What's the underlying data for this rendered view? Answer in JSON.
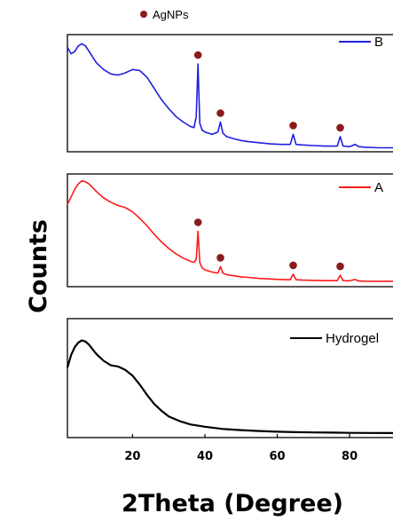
{
  "chart_data": {
    "type": "line",
    "layout": "stacked panels sharing x axis",
    "xlabel": "2Theta (Degree)",
    "ylabel": "Counts",
    "xlim": [
      2,
      92
    ],
    "x_ticks": [
      20,
      40,
      60,
      80
    ],
    "y_ticks_shown": false,
    "grid": false,
    "annotation": {
      "label": "AgNPs",
      "marker": "dot",
      "color": "#8B1A1A",
      "x_positions": [
        38.1,
        44.3,
        64.4,
        77.4
      ],
      "applies_to": [
        "B",
        "A"
      ]
    },
    "panels": [
      {
        "name": "B",
        "legend": "B",
        "color": "#1f1fe0",
        "ylim": [
          0,
          100
        ],
        "x": [
          2,
          3,
          4,
          5,
          6,
          7,
          8,
          10,
          12,
          14,
          16,
          18,
          20,
          22,
          24,
          26,
          28,
          30,
          32,
          34,
          36,
          37,
          37.6,
          38.1,
          38.6,
          39.2,
          40,
          42,
          43.6,
          44.3,
          45,
          46,
          48,
          50,
          52,
          55,
          58,
          61,
          63.6,
          64.4,
          65.2,
          67,
          70,
          73,
          76.6,
          77.4,
          78.2,
          80,
          81.5,
          82.5,
          84,
          88,
          92
        ],
        "values": [
          92,
          86,
          88,
          93,
          95,
          93,
          88,
          78,
          72,
          68,
          67,
          69,
          72,
          71,
          65,
          55,
          45,
          37,
          30,
          25,
          21,
          20,
          30,
          77,
          24,
          18,
          16,
          14,
          16,
          25,
          15,
          12,
          10,
          8.5,
          7.5,
          6.5,
          5.5,
          5,
          5,
          14,
          5,
          4.5,
          4,
          3.5,
          3.5,
          12,
          3.5,
          3,
          5,
          3,
          2.5,
          2,
          2
        ]
      },
      {
        "name": "A",
        "legend": "A",
        "color": "#ff1a1a",
        "ylim": [
          0,
          100
        ],
        "x": [
          2,
          3,
          4,
          5,
          6,
          7,
          8,
          10,
          12,
          14,
          16,
          18,
          20,
          22,
          24,
          26,
          28,
          30,
          32,
          34,
          36,
          37,
          37.6,
          38.1,
          38.6,
          39.2,
          40,
          42,
          43.6,
          44.3,
          45,
          46,
          48,
          50,
          52,
          55,
          58,
          61,
          63.6,
          64.4,
          65.2,
          67,
          70,
          73,
          76.6,
          77.4,
          78.2,
          80,
          81.5,
          82.5,
          84,
          88,
          92
        ],
        "values": [
          75,
          82,
          89,
          94,
          97,
          96,
          94,
          87,
          81,
          77,
          74,
          72,
          68,
          62,
          55,
          47,
          40,
          34,
          29,
          25,
          22,
          21,
          24,
          50,
          21,
          16,
          14,
          12,
          11,
          17,
          11,
          9.5,
          8.5,
          7.5,
          7,
          6,
          5.5,
          5,
          4.8,
          10,
          4.8,
          4.5,
          4.2,
          4,
          4,
          9,
          4,
          3.8,
          5,
          3.6,
          3.5,
          3.4,
          3.4
        ]
      },
      {
        "name": "Hydrogel",
        "legend": "Hydrogel",
        "color": "#000000",
        "ylim": [
          0,
          100
        ],
        "x": [
          2,
          3,
          4,
          5,
          6,
          7,
          8,
          9,
          10,
          12,
          14,
          16,
          18,
          20,
          22,
          24,
          26,
          28,
          30,
          33,
          36,
          40,
          45,
          50,
          55,
          60,
          65,
          70,
          75,
          80,
          85,
          92
        ],
        "values": [
          60,
          71,
          78,
          82,
          84,
          83,
          80,
          76,
          72,
          66,
          62,
          61,
          58,
          53,
          45,
          36,
          28,
          22,
          17,
          13,
          10,
          8,
          6,
          5,
          4.2,
          3.6,
          3.2,
          3,
          2.8,
          2.6,
          2.5,
          2.4
        ]
      }
    ]
  }
}
